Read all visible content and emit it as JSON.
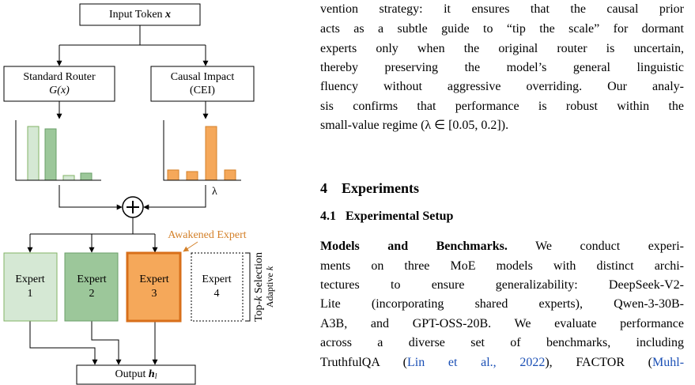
{
  "figure": {
    "input": {
      "label": "Input Token",
      "symbol": "x"
    },
    "router": {
      "line1": "Standard Router",
      "line2": "G(x)"
    },
    "causal": {
      "line1": "Causal Impact",
      "line2": "(CEI)"
    },
    "lambda": "λ",
    "experts": [
      {
        "label": "Expert",
        "index": "1"
      },
      {
        "label": "Expert",
        "index": "2"
      },
      {
        "label": "Expert",
        "index": "3"
      },
      {
        "label": "Expert",
        "index": "4"
      }
    ],
    "awakened": "Awakened Expert",
    "selection": {
      "prefix": "Top-",
      "k": "k",
      "suffix": " Selection",
      "adaptive": "Adaptive",
      "adaptive_k": "k"
    },
    "output": {
      "label": "Output",
      "symbol": "h",
      "subscript": "l"
    }
  },
  "text": {
    "paragraph": [
      "vention strategy: it ensures that the causal prior",
      "acts as a subtle guide to “tip the scale” for dormant",
      "experts only when the original router is uncertain,",
      "thereby preserving the model’s general linguistic",
      "fluency without aggressive overriding. Our analy-",
      "sis confirms that performance is robust within the",
      "small-value regime (λ ∈ [0.05, 0.2])."
    ],
    "section": {
      "number": "4",
      "title": "Experiments"
    },
    "subsection": {
      "number": "4.1",
      "title": "Experimental Setup"
    },
    "setup": {
      "lead": "Models and Benchmarks.",
      "first": "We conduct experi-",
      "lines": [
        "ments on three MoE models with distinct archi-",
        "tectures to ensure generalizability: DeepSeek-V2-",
        "Lite (incorporating shared experts), Qwen-3-30B-",
        "A3B, and GPT-OSS-20B. We evaluate performance",
        "across a diverse set of benchmarks, including"
      ],
      "last": [
        "TruthfulQA (",
        "Lin et al., 2022",
        "), FACTOR (",
        "Muhl-"
      ]
    }
  }
}
